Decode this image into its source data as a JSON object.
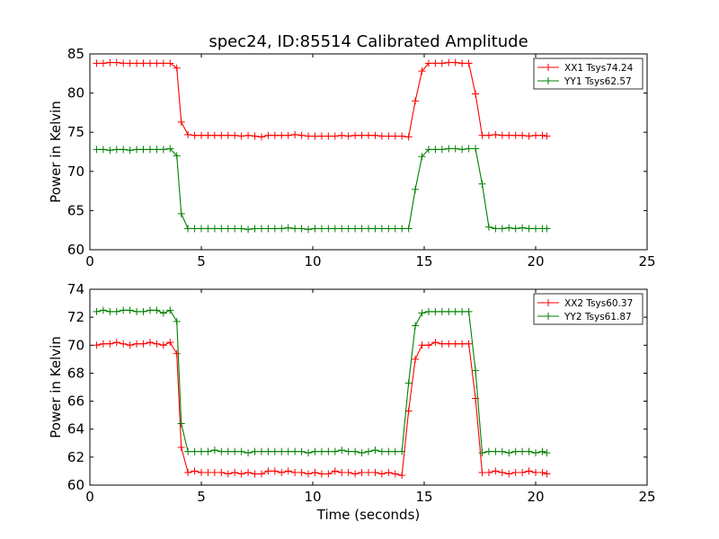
{
  "title": "spec24, ID:85514 Calibrated Amplitude",
  "xlabel": "Time (seconds)",
  "chart_data": [
    {
      "type": "line",
      "ylabel": "Power in Kelvin",
      "xlim": [
        0,
        25
      ],
      "ylim": [
        60,
        85
      ],
      "xticks": [
        0,
        5,
        10,
        15,
        20,
        25
      ],
      "yticks": [
        60,
        65,
        70,
        75,
        80,
        85
      ],
      "legend_position": "top-right",
      "series": [
        {
          "name": "XX1 Tsys74.24",
          "color": "#ff0000",
          "x": [
            0.3,
            0.6,
            0.9,
            1.2,
            1.5,
            1.8,
            2.1,
            2.4,
            2.7,
            3.0,
            3.3,
            3.6,
            3.9,
            4.1,
            4.4,
            4.7,
            5.0,
            5.3,
            5.6,
            5.9,
            6.2,
            6.5,
            6.8,
            7.1,
            7.4,
            7.7,
            8.0,
            8.3,
            8.6,
            8.9,
            9.2,
            9.5,
            9.8,
            10.1,
            10.4,
            10.7,
            11.0,
            11.3,
            11.6,
            11.9,
            12.2,
            12.5,
            12.8,
            13.1,
            13.4,
            13.7,
            14.0,
            14.3,
            14.6,
            14.9,
            15.2,
            15.5,
            15.8,
            16.1,
            16.4,
            16.7,
            17.0,
            17.3,
            17.6,
            17.9,
            18.2,
            18.5,
            18.8,
            19.1,
            19.4,
            19.7,
            20.0,
            20.3,
            20.5
          ],
          "y": [
            83.8,
            83.8,
            83.9,
            83.9,
            83.8,
            83.8,
            83.8,
            83.8,
            83.8,
            83.8,
            83.8,
            83.8,
            83.2,
            76.3,
            74.7,
            74.6,
            74.6,
            74.6,
            74.6,
            74.6,
            74.6,
            74.6,
            74.5,
            74.6,
            74.5,
            74.4,
            74.6,
            74.6,
            74.6,
            74.6,
            74.7,
            74.6,
            74.5,
            74.5,
            74.5,
            74.5,
            74.5,
            74.6,
            74.5,
            74.6,
            74.6,
            74.6,
            74.6,
            74.5,
            74.5,
            74.5,
            74.5,
            74.4,
            79.0,
            82.8,
            83.8,
            83.8,
            83.8,
            83.9,
            83.9,
            83.8,
            83.8,
            79.9,
            74.6,
            74.6,
            74.7,
            74.6,
            74.6,
            74.6,
            74.6,
            74.5,
            74.6,
            74.6,
            74.5
          ]
        },
        {
          "name": "YY1 Tsys62.57",
          "color": "#008000",
          "x": [
            0.3,
            0.6,
            0.9,
            1.2,
            1.5,
            1.8,
            2.1,
            2.4,
            2.7,
            3.0,
            3.3,
            3.6,
            3.9,
            4.1,
            4.4,
            4.7,
            5.0,
            5.3,
            5.6,
            5.9,
            6.2,
            6.5,
            6.8,
            7.1,
            7.4,
            7.7,
            8.0,
            8.3,
            8.6,
            8.9,
            9.2,
            9.5,
            9.8,
            10.1,
            10.4,
            10.7,
            11.0,
            11.3,
            11.6,
            11.9,
            12.2,
            12.5,
            12.8,
            13.1,
            13.4,
            13.7,
            14.0,
            14.3,
            14.6,
            14.9,
            15.2,
            15.5,
            15.8,
            16.1,
            16.4,
            16.7,
            17.0,
            17.3,
            17.6,
            17.9,
            18.2,
            18.5,
            18.8,
            19.1,
            19.4,
            19.7,
            20.0,
            20.3,
            20.5
          ],
          "y": [
            72.8,
            72.8,
            72.7,
            72.8,
            72.8,
            72.7,
            72.8,
            72.8,
            72.8,
            72.8,
            72.8,
            72.9,
            72.0,
            64.6,
            62.7,
            62.7,
            62.7,
            62.7,
            62.7,
            62.7,
            62.7,
            62.7,
            62.7,
            62.6,
            62.7,
            62.7,
            62.7,
            62.7,
            62.7,
            62.8,
            62.7,
            62.7,
            62.6,
            62.7,
            62.7,
            62.7,
            62.7,
            62.7,
            62.7,
            62.7,
            62.7,
            62.7,
            62.7,
            62.7,
            62.7,
            62.7,
            62.7,
            62.7,
            67.7,
            71.9,
            72.8,
            72.8,
            72.8,
            72.9,
            72.9,
            72.8,
            72.9,
            72.9,
            68.4,
            62.9,
            62.7,
            62.7,
            62.8,
            62.7,
            62.8,
            62.7,
            62.7,
            62.7,
            62.7
          ]
        }
      ]
    },
    {
      "type": "line",
      "ylabel": "Power in Kelvin",
      "xlabel": "Time (seconds)",
      "xlim": [
        0,
        25
      ],
      "ylim": [
        60,
        74
      ],
      "xticks": [
        0,
        5,
        10,
        15,
        20,
        25
      ],
      "yticks": [
        60,
        62,
        64,
        66,
        68,
        70,
        72,
        74
      ],
      "legend_position": "top-right",
      "series": [
        {
          "name": "XX2 Tsys60.37",
          "color": "#ff0000",
          "x": [
            0.3,
            0.6,
            0.9,
            1.2,
            1.5,
            1.8,
            2.1,
            2.4,
            2.7,
            3.0,
            3.3,
            3.6,
            3.9,
            4.1,
            4.4,
            4.7,
            5.0,
            5.3,
            5.6,
            5.9,
            6.2,
            6.5,
            6.8,
            7.1,
            7.4,
            7.7,
            8.0,
            8.3,
            8.6,
            8.9,
            9.2,
            9.5,
            9.8,
            10.1,
            10.4,
            10.7,
            11.0,
            11.3,
            11.6,
            11.9,
            12.2,
            12.5,
            12.8,
            13.1,
            13.4,
            13.7,
            14.0,
            14.3,
            14.6,
            14.9,
            15.2,
            15.5,
            15.8,
            16.1,
            16.4,
            16.7,
            17.0,
            17.3,
            17.6,
            17.9,
            18.2,
            18.5,
            18.8,
            19.1,
            19.4,
            19.7,
            20.0,
            20.3,
            20.5
          ],
          "y": [
            70.0,
            70.1,
            70.1,
            70.2,
            70.1,
            70.0,
            70.1,
            70.1,
            70.2,
            70.1,
            70.0,
            70.2,
            69.4,
            62.7,
            60.9,
            61.0,
            60.9,
            60.9,
            60.9,
            60.9,
            60.8,
            60.9,
            60.8,
            60.9,
            60.8,
            60.8,
            61.0,
            61.0,
            60.9,
            61.0,
            60.9,
            60.9,
            60.8,
            60.9,
            60.8,
            60.8,
            61.0,
            60.9,
            60.9,
            60.8,
            60.9,
            60.9,
            60.9,
            60.8,
            60.9,
            60.8,
            60.7,
            65.3,
            69.0,
            70.0,
            70.0,
            70.2,
            70.1,
            70.1,
            70.1,
            70.1,
            70.1,
            66.2,
            60.9,
            60.9,
            61.0,
            60.9,
            60.8,
            60.9,
            60.9,
            61.0,
            60.9,
            60.9,
            60.8
          ]
        },
        {
          "name": "YY2 Tsys61.87",
          "color": "#008000",
          "x": [
            0.3,
            0.6,
            0.9,
            1.2,
            1.5,
            1.8,
            2.1,
            2.4,
            2.7,
            3.0,
            3.3,
            3.6,
            3.9,
            4.1,
            4.4,
            4.7,
            5.0,
            5.3,
            5.6,
            5.9,
            6.2,
            6.5,
            6.8,
            7.1,
            7.4,
            7.7,
            8.0,
            8.3,
            8.6,
            8.9,
            9.2,
            9.5,
            9.8,
            10.1,
            10.4,
            10.7,
            11.0,
            11.3,
            11.6,
            11.9,
            12.2,
            12.5,
            12.8,
            13.1,
            13.4,
            13.7,
            14.0,
            14.3,
            14.6,
            14.9,
            15.2,
            15.5,
            15.8,
            16.1,
            16.4,
            16.7,
            17.0,
            17.3,
            17.6,
            17.9,
            18.2,
            18.5,
            18.8,
            19.1,
            19.4,
            19.7,
            20.0,
            20.3,
            20.5
          ],
          "y": [
            72.4,
            72.5,
            72.4,
            72.4,
            72.5,
            72.5,
            72.4,
            72.4,
            72.5,
            72.5,
            72.3,
            72.5,
            71.7,
            64.4,
            62.4,
            62.4,
            62.4,
            62.4,
            62.5,
            62.4,
            62.4,
            62.4,
            62.4,
            62.3,
            62.4,
            62.4,
            62.4,
            62.4,
            62.4,
            62.4,
            62.4,
            62.4,
            62.3,
            62.4,
            62.4,
            62.4,
            62.4,
            62.5,
            62.4,
            62.4,
            62.3,
            62.4,
            62.5,
            62.4,
            62.4,
            62.4,
            62.4,
            67.3,
            71.4,
            72.3,
            72.4,
            72.4,
            72.4,
            72.4,
            72.4,
            72.4,
            72.4,
            68.2,
            62.3,
            62.4,
            62.4,
            62.4,
            62.3,
            62.4,
            62.4,
            62.4,
            62.3,
            62.4,
            62.3
          ]
        }
      ]
    }
  ]
}
